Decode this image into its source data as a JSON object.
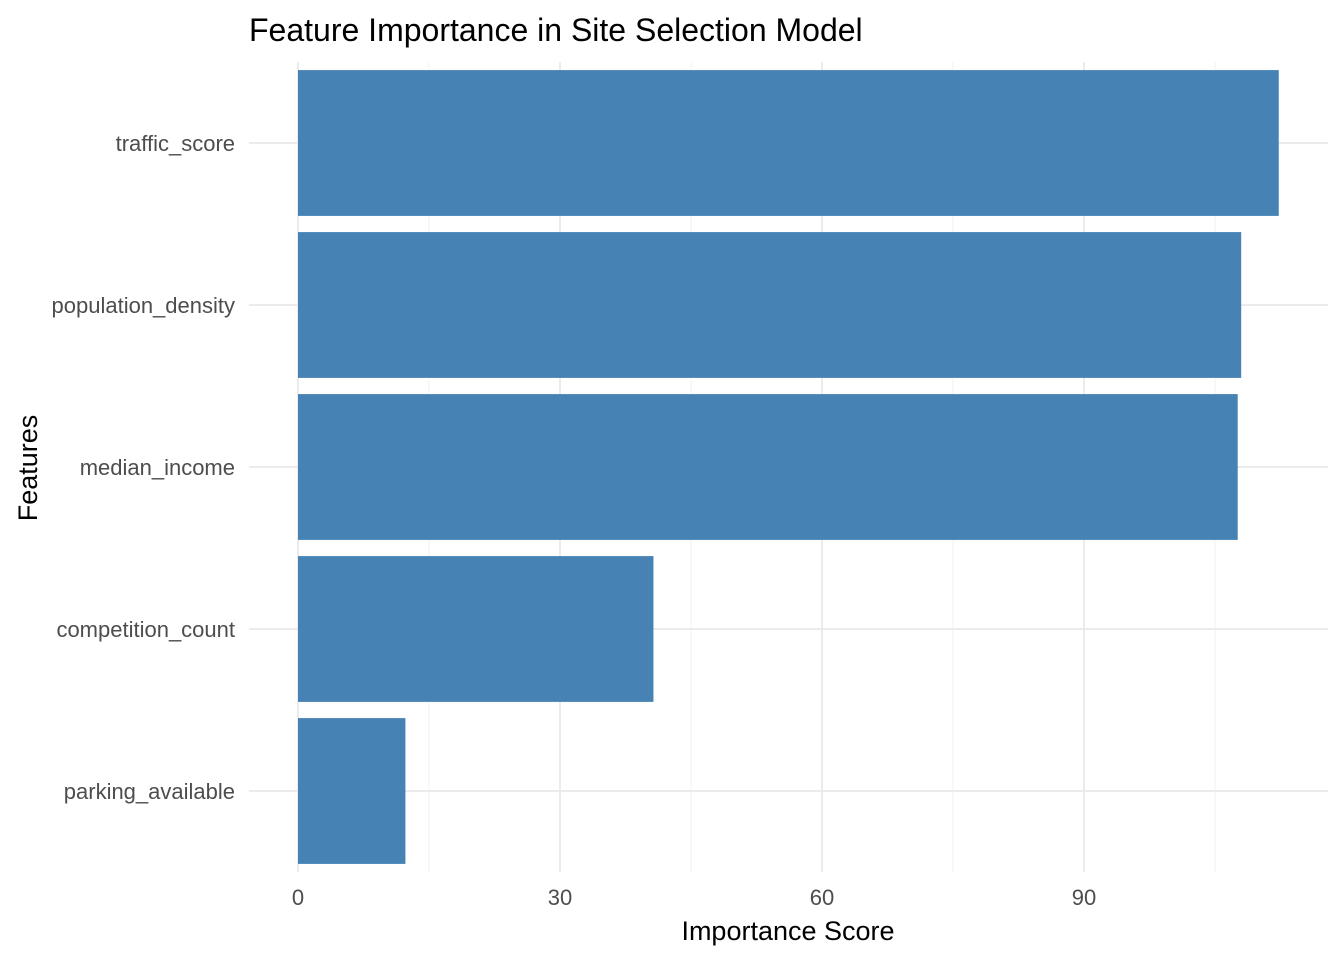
{
  "chart_data": {
    "type": "bar",
    "orientation": "horizontal",
    "title": "Feature Importance in Site Selection Model",
    "xlabel": "Importance Score",
    "ylabel": "Features",
    "categories": [
      "traffic_score",
      "population_density",
      "median_income",
      "competition_count",
      "parking_available"
    ],
    "values": [
      112.3,
      108.0,
      107.6,
      40.7,
      12.3
    ],
    "xlim": [
      0,
      117.6
    ],
    "x_ticks": [
      0,
      30,
      60,
      90
    ],
    "x_tick_labels": [
      "0",
      "30",
      "60",
      "90"
    ],
    "bar_color": "#4682B4",
    "grid": true,
    "legend": "none"
  }
}
